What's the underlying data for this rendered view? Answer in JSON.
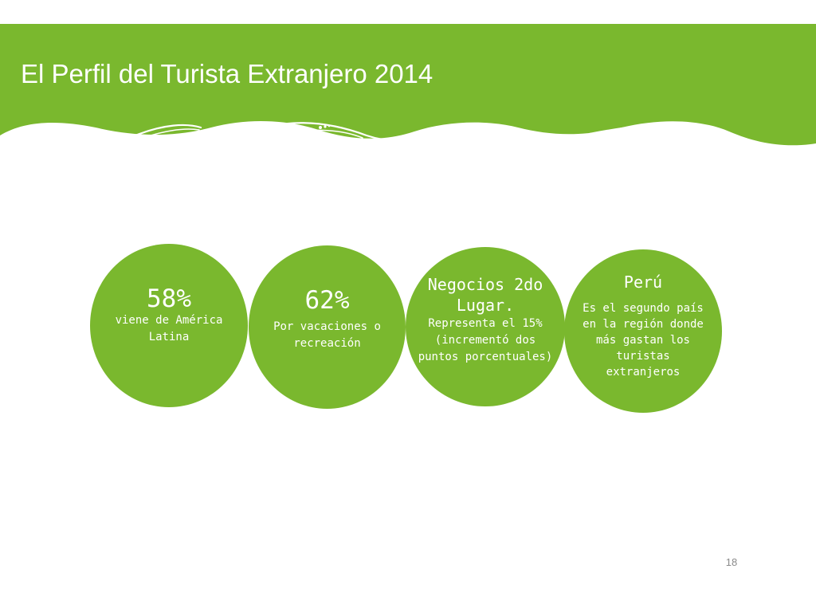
{
  "slide": {
    "title": "El Perfil del Turista Extranjero 2014",
    "page_number": "18"
  },
  "colors": {
    "primary_green": "#7ab82e",
    "text_on_green": "#ffffff",
    "background": "#ffffff"
  },
  "circles": [
    {
      "headline": "58%",
      "body": "viene de América Latina"
    },
    {
      "headline": "62%",
      "body": "Por vacaciones o recreación"
    },
    {
      "headline": "Negocios 2do Lugar.",
      "body": "Representa el 15% (incrementó dos puntos porcentuales)"
    },
    {
      "headline": "Perú",
      "body": "Es el segundo país en la región donde más gastan los turistas extranjeros"
    }
  ]
}
